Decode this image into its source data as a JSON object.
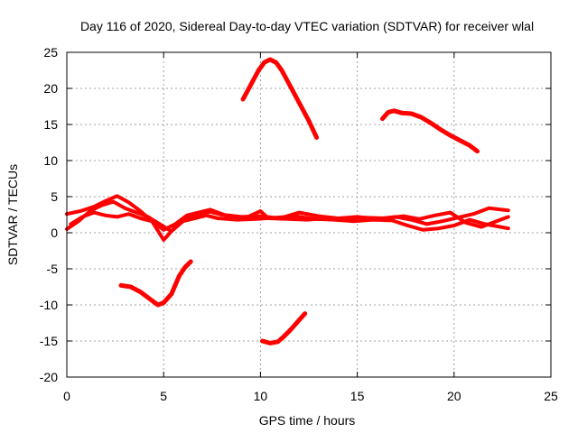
{
  "chart_data": {
    "type": "line",
    "title": "Day 116 of 2020, Sidereal Day-to-day VTEC variation (SDTVAR) for receiver wlal",
    "xlabel": "GPS time / hours",
    "ylabel": "SDTVAR / TECUs",
    "xlim": [
      0,
      25
    ],
    "ylim": [
      -20,
      25
    ],
    "xticks": [
      0,
      5,
      10,
      15,
      20,
      25
    ],
    "yticks": [
      -20,
      -15,
      -10,
      -5,
      0,
      5,
      10,
      15,
      20,
      25
    ],
    "xtick_labels": [
      "0",
      "5",
      "10",
      "15",
      "20",
      "25"
    ],
    "ytick_labels": [
      "-20",
      "-15",
      "-10",
      "-5",
      "0",
      "5",
      "10",
      "15",
      "20",
      "25"
    ],
    "grid": true,
    "line_color": "#ff0000",
    "series": [
      {
        "name": "arc-top-peak",
        "x": [
          9.1,
          9.5,
          9.9,
          10.2,
          10.5,
          10.8,
          11.1,
          11.5,
          12.0,
          12.5,
          12.9
        ],
        "y": [
          18.5,
          20.5,
          22.5,
          23.6,
          24.0,
          23.6,
          22.5,
          20.5,
          18.0,
          15.5,
          13.2
        ]
      },
      {
        "name": "arc-upper-right",
        "x": [
          16.3,
          16.6,
          16.9,
          17.3,
          17.8,
          18.3,
          18.8,
          19.3,
          19.8,
          20.3,
          20.8,
          21.2
        ],
        "y": [
          15.8,
          16.7,
          16.9,
          16.6,
          16.5,
          16.0,
          15.2,
          14.3,
          13.5,
          12.8,
          12.1,
          11.3
        ]
      },
      {
        "name": "arc-lower-left",
        "x": [
          2.8,
          3.3,
          3.8,
          4.3,
          4.7,
          5.0,
          5.4,
          5.8,
          6.1,
          6.4
        ],
        "y": [
          -7.3,
          -7.5,
          -8.2,
          -9.2,
          -10.0,
          -9.7,
          -8.5,
          -6.0,
          -4.8,
          -4.0
        ]
      },
      {
        "name": "arc-lower-center",
        "x": [
          10.1,
          10.5,
          10.9,
          11.2,
          11.5,
          11.8,
          12.1,
          12.3
        ],
        "y": [
          -15.0,
          -15.3,
          -15.1,
          -14.4,
          -13.6,
          -12.7,
          -11.8,
          -11.2
        ]
      },
      {
        "name": "band-a",
        "x": [
          0.0,
          0.7,
          1.4,
          2.0,
          2.6,
          3.2,
          3.8,
          4.4,
          5.0,
          5.6,
          6.2,
          6.8,
          7.4,
          8.0,
          9.0,
          10.0,
          11.0,
          12.0,
          13.0,
          14.0,
          15.0,
          16.0,
          17.0,
          17.8,
          18.6,
          19.4,
          20.2,
          21.0,
          21.8,
          22.8
        ],
        "y": [
          2.6,
          3.0,
          3.6,
          4.4,
          5.1,
          4.2,
          3.0,
          1.6,
          -1.0,
          0.8,
          2.1,
          2.6,
          2.9,
          2.5,
          2.2,
          2.3,
          2.0,
          2.8,
          2.3,
          2.0,
          2.2,
          1.9,
          2.2,
          1.8,
          1.2,
          1.6,
          2.1,
          2.6,
          3.4,
          3.1
        ]
      },
      {
        "name": "band-b",
        "x": [
          0.0,
          0.6,
          1.2,
          1.8,
          2.4,
          3.0,
          3.6,
          4.2,
          4.8,
          5.4,
          6.0,
          6.6,
          7.2,
          7.8,
          8.8,
          9.8,
          10.8,
          11.8,
          12.8,
          13.8,
          14.8,
          15.8,
          16.8,
          17.6,
          18.4,
          19.2,
          20.0,
          20.8,
          21.6,
          22.8
        ],
        "y": [
          0.5,
          1.6,
          3.0,
          3.8,
          4.3,
          3.4,
          2.8,
          2.2,
          1.2,
          0.2,
          1.6,
          2.0,
          2.4,
          2.0,
          1.8,
          1.9,
          2.1,
          2.3,
          1.9,
          1.8,
          1.6,
          1.8,
          1.7,
          1.0,
          0.4,
          0.6,
          1.0,
          1.8,
          1.2,
          0.6
        ]
      },
      {
        "name": "band-c",
        "x": [
          0.2,
          0.8,
          1.4,
          2.0,
          2.6,
          3.2,
          3.8,
          4.4,
          5.0,
          5.6,
          6.2,
          6.8,
          7.4,
          8.2,
          9.2,
          10.0,
          10.4,
          11.4,
          12.4,
          13.4,
          14.4,
          15.4,
          16.4,
          17.4,
          18.2,
          19.0,
          19.8,
          20.6,
          21.4,
          22.8
        ],
        "y": [
          1.2,
          2.2,
          2.8,
          2.4,
          2.2,
          2.6,
          2.0,
          1.6,
          0.4,
          1.2,
          2.4,
          2.8,
          3.2,
          2.4,
          2.0,
          3.0,
          2.0,
          1.9,
          1.8,
          2.0,
          2.0,
          2.1,
          2.0,
          2.3,
          1.9,
          2.4,
          2.8,
          1.4,
          0.8,
          2.2
        ]
      }
    ]
  }
}
